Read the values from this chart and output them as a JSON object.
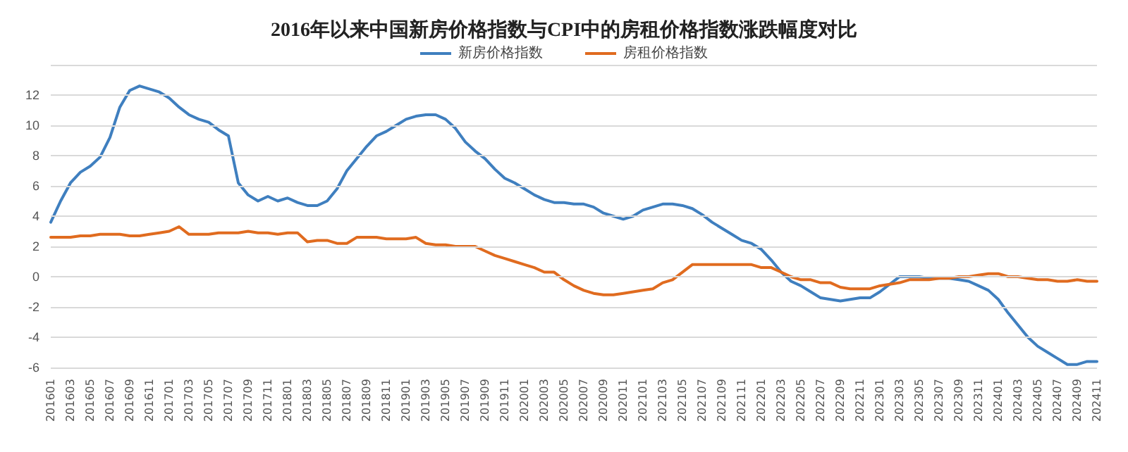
{
  "chart_data": {
    "type": "line",
    "title": "2016年以来中国新房价格指数与CPI中的房租价格指数涨跌幅度对比",
    "categories": [
      "201601",
      null,
      "201603",
      null,
      "201605",
      null,
      "201607",
      null,
      "201609",
      null,
      "201611",
      null,
      "201701",
      null,
      "201703",
      null,
      "201705",
      null,
      "201707",
      null,
      "201709",
      null,
      "201711",
      null,
      "201801",
      null,
      "201803",
      null,
      "201805",
      null,
      "201807",
      null,
      "201809",
      null,
      "201811",
      null,
      "201901",
      null,
      "201903",
      null,
      "201905",
      null,
      "201907",
      null,
      "201909",
      null,
      "201911",
      null,
      "202001",
      null,
      "202003",
      null,
      "202005",
      null,
      "202007",
      null,
      "202009",
      null,
      "202011",
      null,
      "202101",
      null,
      "202103",
      null,
      "202105",
      null,
      "202107",
      null,
      "202109",
      null,
      "202111",
      null,
      "202201",
      null,
      "202203",
      null,
      "202205",
      null,
      "202207",
      null,
      "202209",
      null,
      "202211",
      null,
      "202301",
      null,
      "202303",
      null,
      "202305",
      null,
      "202307",
      null,
      "202309",
      null,
      "202311",
      null,
      "202401",
      null,
      "202403",
      null,
      "202405",
      null,
      "202407",
      null,
      "202409",
      null,
      "202411"
    ],
    "series": [
      {
        "name": "新房价格指数",
        "color": "#3f7fbf",
        "values": [
          3.6,
          5.0,
          6.2,
          6.9,
          7.3,
          7.9,
          9.2,
          11.2,
          12.3,
          12.6,
          12.4,
          12.2,
          11.8,
          11.2,
          10.7,
          10.4,
          10.2,
          9.7,
          9.3,
          6.2,
          5.4,
          5.0,
          5.3,
          5.0,
          5.2,
          4.9,
          4.7,
          4.7,
          5.0,
          5.8,
          7.0,
          7.8,
          8.6,
          9.3,
          9.6,
          10.0,
          10.4,
          10.6,
          10.7,
          10.7,
          10.4,
          9.8,
          8.9,
          8.3,
          7.8,
          7.1,
          6.5,
          6.2,
          5.8,
          5.4,
          5.1,
          4.9,
          4.9,
          4.8,
          4.8,
          4.6,
          4.2,
          4.0,
          3.8,
          4.0,
          4.4,
          4.6,
          4.8,
          4.8,
          4.7,
          4.5,
          4.1,
          3.6,
          3.2,
          2.8,
          2.4,
          2.2,
          1.8,
          1.1,
          0.3,
          -0.3,
          -0.6,
          -1.0,
          -1.4,
          -1.5,
          -1.6,
          -1.5,
          -1.4,
          -1.4,
          -1.0,
          -0.5,
          0.0,
          0.0,
          0.0,
          -0.1,
          -0.1,
          -0.1,
          -0.2,
          -0.3,
          -0.6,
          -0.9,
          -1.5,
          -2.4,
          -3.2,
          -4.0,
          -4.6,
          -5.0,
          -5.4,
          -5.8,
          -5.8,
          -5.6,
          -5.6
        ]
      },
      {
        "name": "房租价格指数",
        "color": "#e06b1f",
        "values": [
          2.6,
          2.6,
          2.6,
          2.7,
          2.7,
          2.8,
          2.8,
          2.8,
          2.7,
          2.7,
          2.8,
          2.9,
          3.0,
          3.3,
          2.8,
          2.8,
          2.8,
          2.9,
          2.9,
          2.9,
          3.0,
          2.9,
          2.9,
          2.8,
          2.9,
          2.9,
          2.3,
          2.4,
          2.4,
          2.2,
          2.2,
          2.6,
          2.6,
          2.6,
          2.5,
          2.5,
          2.5,
          2.6,
          2.2,
          2.1,
          2.1,
          2.0,
          2.0,
          2.0,
          1.7,
          1.4,
          1.2,
          1.0,
          0.8,
          0.6,
          0.3,
          0.3,
          -0.2,
          -0.6,
          -0.9,
          -1.1,
          -1.2,
          -1.2,
          -1.1,
          -1.0,
          -0.9,
          -0.8,
          -0.4,
          -0.2,
          0.3,
          0.8,
          0.8,
          0.8,
          0.8,
          0.8,
          0.8,
          0.8,
          0.6,
          0.6,
          0.3,
          0.0,
          -0.2,
          -0.2,
          -0.4,
          -0.4,
          -0.7,
          -0.8,
          -0.8,
          -0.8,
          -0.6,
          -0.5,
          -0.4,
          -0.2,
          -0.2,
          -0.2,
          -0.1,
          -0.1,
          0.0,
          0.0,
          0.1,
          0.2,
          0.2,
          0.0,
          0.0,
          -0.1,
          -0.2,
          -0.2,
          -0.3,
          -0.3,
          -0.2,
          -0.3,
          -0.3
        ]
      }
    ],
    "ylim": [
      -6,
      14
    ],
    "yticks": [
      -6,
      -4,
      -2,
      0,
      2,
      4,
      6,
      8,
      10,
      12,
      {
        "value": 14,
        "label": null
      }
    ],
    "grid": "y",
    "legend": "top",
    "marker": "none",
    "line_style": "solid"
  }
}
